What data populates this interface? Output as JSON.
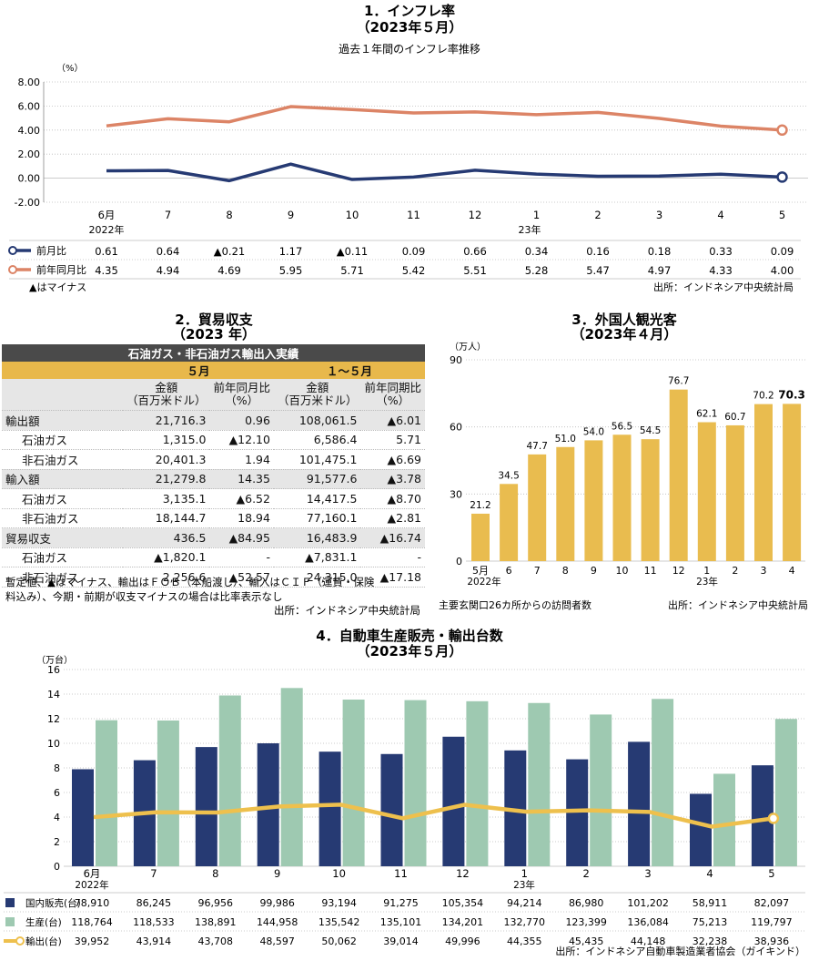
{
  "inflation": {
    "title": "1．インフレ率",
    "subtitle": "（2023年５月）",
    "chart_title": "過去１年間のインフレ率推移",
    "unit": "（%）",
    "yticks": [
      "8.00",
      "6.00",
      "4.00",
      "2.00",
      "0.00",
      "-2.00"
    ],
    "months": [
      "6月",
      "7",
      "8",
      "9",
      "10",
      "11",
      "12",
      "1",
      "2",
      "3",
      "4",
      "5"
    ],
    "year1": "2022年",
    "year2": "23年",
    "mom_label": "前月比",
    "yoy_label": "前年同月比",
    "mom_display": [
      "0.61",
      "0.64",
      "▲0.21",
      "1.17",
      "▲0.11",
      "0.09",
      "0.66",
      "0.34",
      "0.16",
      "0.18",
      "0.33",
      "0.09"
    ],
    "yoy_display": [
      "4.35",
      "4.94",
      "4.69",
      "5.95",
      "5.71",
      "5.42",
      "5.51",
      "5.28",
      "5.47",
      "4.97",
      "4.33",
      "4.00"
    ],
    "note": "▲はマイナス",
    "source": "出所：インドネシア中央統計局"
  },
  "trade": {
    "title": "2．貿易収支",
    "subtitle": "（2023 年）",
    "table_title": "石油ガス・非石油ガス輸出入実績",
    "period1": "５月",
    "period2": "１～５月",
    "col_amount": "金額",
    "col_amount_unit": "（百万米ドル）",
    "col_yoy_month": "前年同月比",
    "col_yoy_period": "前年同期比",
    "col_pct": "（%）",
    "rows": [
      {
        "label": "輸出額",
        "v1": "21,716.3",
        "v2": "0.96",
        "v3": "108,061.5",
        "v4": "▲6.01"
      },
      {
        "label": "石油ガス",
        "v1": "1,315.0",
        "v2": "▲12.10",
        "v3": "6,586.4",
        "v4": "5.71"
      },
      {
        "label": "非石油ガス",
        "v1": "20,401.3",
        "v2": "1.94",
        "v3": "101,475.1",
        "v4": "▲6.69"
      },
      {
        "label": "輸入額",
        "v1": "21,279.8",
        "v2": "14.35",
        "v3": "91,577.6",
        "v4": "▲3.78"
      },
      {
        "label": "石油ガス",
        "v1": "3,135.1",
        "v2": "▲6.52",
        "v3": "14,417.5",
        "v4": "▲8.70"
      },
      {
        "label": "非石油ガス",
        "v1": "18,144.7",
        "v2": "18.94",
        "v3": "77,160.1",
        "v4": "▲2.81"
      },
      {
        "label": "貿易収支",
        "v1": "436.5",
        "v2": "▲84.95",
        "v3": "16,483.9",
        "v4": "▲16.74"
      },
      {
        "label": "石油ガス",
        "v1": "▲1,820.1",
        "v2": "-",
        "v3": "▲7,831.1",
        "v4": "-"
      },
      {
        "label": "非石油ガス",
        "v1": "2,256.6",
        "v2": "▲52.57",
        "v3": "24,315.0",
        "v4": "▲17.18"
      }
    ],
    "note1": "暫定値、▲はマイナス、輸出はＦＯＢ（本船渡し）、輸入はＣＩＦ（運賃・保険",
    "note2": "料込み）、今期・前期が収支マイナスの場合は比率表示なし",
    "source": "出所：インドネシア中央統計局"
  },
  "tourists": {
    "title": "3．外国人観光客",
    "subtitle": "（2023年４月）",
    "unit": "（万人）",
    "yticks": [
      "90",
      "60",
      "30",
      "0"
    ],
    "categories": [
      "5月",
      "6",
      "7",
      "8",
      "9",
      "10",
      "11",
      "12",
      "1",
      "2",
      "3",
      "4"
    ],
    "labels": [
      "21.2",
      "34.5",
      "47.7",
      "51.0",
      "54.0",
      "56.5",
      "54.5",
      "76.7",
      "62.1",
      "60.7",
      "70.2",
      "70.3"
    ],
    "year1": "2022年",
    "year2": "23年",
    "note": "主要玄関口26カ所からの訪問者数",
    "source": "出所：インドネシア中央統計局",
    "bar_color": "#e9bc4f"
  },
  "autos": {
    "title": "4．自動車生産販売・輸出台数",
    "subtitle": "（2023年５月）",
    "unit": "（万台）",
    "yticks": [
      "16",
      "14",
      "12",
      "10",
      "8",
      "6",
      "4",
      "2",
      "0"
    ],
    "months": [
      "6月",
      "7",
      "8",
      "9",
      "10",
      "11",
      "12",
      "1",
      "2",
      "3",
      "4",
      "5"
    ],
    "year1": "2022年",
    "year2": "23年",
    "domestic_label": "国内販売(台)",
    "production_label": "生産(台)",
    "export_label": "輸出(台)",
    "domestic": [
      "78,910",
      "86,245",
      "96,956",
      "99,986",
      "93,194",
      "91,275",
      "105,354",
      "94,214",
      "86,980",
      "101,202",
      "58,911",
      "82,097"
    ],
    "production": [
      "118,764",
      "118,533",
      "138,891",
      "144,958",
      "135,542",
      "135,101",
      "134,201",
      "132,770",
      "123,399",
      "136,084",
      "75,213",
      "119,797"
    ],
    "export": [
      "39,952",
      "43,914",
      "43,708",
      "48,597",
      "50,062",
      "39,014",
      "49,996",
      "44,355",
      "45,435",
      "44,148",
      "32,238",
      "38,936"
    ],
    "source": "出所：インドネシア自動車製造業者協会（ガイキンド）",
    "colors": {
      "domestic": "#263a73",
      "production": "#9ec9b1",
      "export": "#eec04d"
    }
  },
  "chart_data": [
    {
      "type": "line",
      "title": "過去１年間のインフレ率推移",
      "ylabel": "（%）",
      "ylim": [
        -2,
        8
      ],
      "x": [
        "6月",
        "7",
        "8",
        "9",
        "10",
        "11",
        "12",
        "1",
        "2",
        "3",
        "4",
        "5"
      ],
      "series": [
        {
          "name": "前月比",
          "values": [
            0.61,
            0.64,
            -0.21,
            1.17,
            -0.11,
            0.09,
            0.66,
            0.34,
            0.16,
            0.18,
            0.33,
            0.09
          ],
          "color": "#263a73"
        },
        {
          "name": "前年同月比",
          "values": [
            4.35,
            4.94,
            4.69,
            5.95,
            5.71,
            5.42,
            5.51,
            5.28,
            5.47,
            4.97,
            4.33,
            4.0
          ],
          "color": "#dc8466"
        }
      ]
    },
    {
      "type": "bar",
      "title": "3．外国人観光客",
      "ylabel": "（万人）",
      "ylim": [
        0,
        90
      ],
      "categories": [
        "5月",
        "6",
        "7",
        "8",
        "9",
        "10",
        "11",
        "12",
        "1",
        "2",
        "3",
        "4"
      ],
      "values": [
        21.2,
        34.5,
        47.7,
        51.0,
        54.0,
        56.5,
        54.5,
        76.7,
        62.1,
        60.7,
        70.2,
        70.3
      ]
    },
    {
      "type": "bar",
      "title": "4．自動車生産販売・輸出台数",
      "ylabel": "（万台）",
      "ylim": [
        0,
        16
      ],
      "categories": [
        "6月",
        "7",
        "8",
        "9",
        "10",
        "11",
        "12",
        "1",
        "2",
        "3",
        "4",
        "5"
      ],
      "series": [
        {
          "name": "国内販売(台)",
          "values": [
            78910,
            86245,
            96956,
            99986,
            93194,
            91275,
            105354,
            94214,
            86980,
            101202,
            58911,
            82097
          ]
        },
        {
          "name": "生産(台)",
          "values": [
            118764,
            118533,
            138891,
            144958,
            135542,
            135101,
            134201,
            132770,
            123399,
            136084,
            75213,
            119797
          ]
        },
        {
          "name": "輸出(台)",
          "values": [
            39952,
            43914,
            43708,
            48597,
            50062,
            39014,
            49996,
            44355,
            45435,
            44148,
            32238,
            38936
          ]
        }
      ]
    }
  ]
}
